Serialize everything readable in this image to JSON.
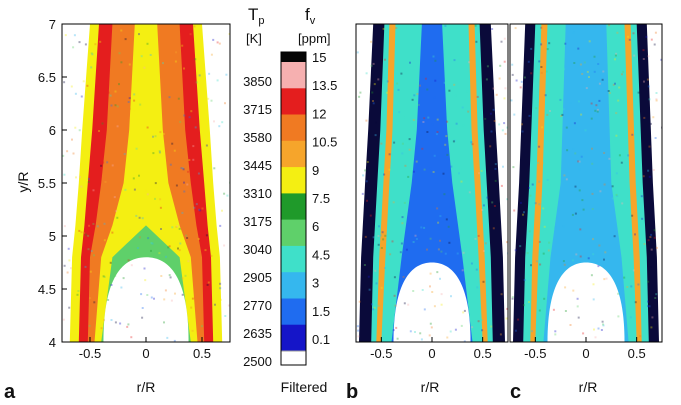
{
  "colors": {
    "levels": [
      "#0a0a3a",
      "#1515c8",
      "#1f6cf0",
      "#35b7ee",
      "#3fe0c9",
      "#5fd06a",
      "#1f9a2a",
      "#f4ef12",
      "#f6a52b",
      "#f07a22",
      "#e41e1e",
      "#f6b0b0",
      "#050505"
    ],
    "filtered": "#ffffff"
  },
  "chart_data": [
    {
      "type": "heatmap",
      "panel": "a",
      "quantity": "Tp",
      "xlabel": "r/R",
      "ylabel": "y/R",
      "xlim": [
        -0.75,
        0.75
      ],
      "ylim": [
        4,
        7
      ],
      "xticks": [
        "-0.5",
        "0",
        "0.5"
      ],
      "yticks": [
        "4",
        "4.5",
        "5",
        "5.5",
        "6",
        "6.5",
        "7"
      ],
      "profile": [
        {
          "y": 4.0,
          "r": [
            -0.68,
            -0.6,
            -0.52,
            -0.46,
            -0.4
          ],
          "levels": [
            7,
            10,
            11,
            10,
            9
          ]
        },
        {
          "y": 4.8,
          "r": [
            -0.66,
            -0.58,
            -0.5,
            -0.4,
            -0.3
          ],
          "levels": [
            7,
            10,
            11,
            10,
            8
          ]
        },
        {
          "y": 5.1,
          "r": [
            -0.63,
            -0.55,
            -0.45,
            -0.3,
            0.0
          ],
          "levels": [
            7,
            10,
            10,
            9,
            5
          ]
        },
        {
          "y": 5.5,
          "r": [
            -0.6,
            -0.52,
            -0.4,
            -0.2,
            0.0
          ],
          "levels": [
            7,
            10,
            9,
            7,
            5
          ]
        },
        {
          "y": 6.0,
          "r": [
            -0.57,
            -0.48,
            -0.35,
            -0.15,
            0.0
          ],
          "levels": [
            7,
            10,
            9,
            8,
            7
          ]
        },
        {
          "y": 7.0,
          "r": [
            -0.5,
            -0.42,
            -0.3,
            -0.1,
            0.0
          ],
          "levels": [
            7,
            9,
            8,
            8,
            8
          ]
        }
      ],
      "filtered_core_tip_y": 4.8
    },
    {
      "type": "legend",
      "header_tp": "T",
      "header_tp_sub": "p",
      "unit_tp": "[K]",
      "header_fv": "f",
      "header_fv_sub": "v",
      "unit_fv": "[ppm]",
      "tp_labels": [
        "3850",
        "3715",
        "3580",
        "3445",
        "3310",
        "3175",
        "3040",
        "2905",
        "2770",
        "2635",
        "2500"
      ],
      "fv_labels": [
        "15",
        "13.5",
        "12",
        "10.5",
        "9",
        "7.5",
        "6",
        "4.5",
        "3",
        "1.5",
        "0.1"
      ],
      "filtered_label": "Filtered"
    },
    {
      "type": "heatmap",
      "panel": "b",
      "quantity": "fv",
      "xlabel": "r/R",
      "xlim": [
        -0.75,
        0.75
      ],
      "ylim": [
        4,
        7
      ],
      "xticks": [
        "-0.5",
        "0",
        "0.5"
      ],
      "profile": [
        {
          "y": 4.0,
          "r": [
            -0.72,
            -0.6,
            -0.55,
            -0.5,
            -0.4
          ],
          "levels": [
            0,
            4,
            7,
            4,
            2
          ]
        },
        {
          "y": 4.8,
          "r": [
            -0.7,
            -0.58,
            -0.52,
            -0.46,
            -0.3
          ],
          "levels": [
            0,
            4,
            7,
            4,
            2
          ]
        },
        {
          "y": 5.5,
          "r": [
            -0.66,
            -0.54,
            -0.48,
            -0.42,
            -0.2
          ],
          "levels": [
            0,
            4,
            8,
            4,
            2
          ]
        },
        {
          "y": 6.0,
          "r": [
            -0.63,
            -0.51,
            -0.45,
            -0.39,
            -0.15
          ],
          "levels": [
            0,
            4,
            8,
            4,
            3
          ]
        },
        {
          "y": 7.0,
          "r": [
            -0.58,
            -0.47,
            -0.42,
            -0.36,
            -0.1
          ],
          "levels": [
            0,
            4,
            7,
            4,
            3
          ]
        }
      ],
      "filtered_core_tip_y": 4.75
    },
    {
      "type": "heatmap",
      "panel": "c",
      "quantity": "fv",
      "xlabel": "r/R",
      "xlim": [
        -0.75,
        0.75
      ],
      "ylim": [
        4,
        7
      ],
      "xticks": [
        "-0.5",
        "0",
        "0.5"
      ],
      "profile": [
        {
          "y": 4.0,
          "r": [
            -0.72,
            -0.62,
            -0.55,
            -0.5,
            -0.42
          ],
          "levels": [
            0,
            3,
            7,
            4,
            2
          ]
        },
        {
          "y": 4.8,
          "r": [
            -0.7,
            -0.6,
            -0.53,
            -0.47,
            -0.35
          ],
          "levels": [
            0,
            4,
            7,
            4,
            2
          ]
        },
        {
          "y": 5.5,
          "r": [
            -0.66,
            -0.56,
            -0.49,
            -0.43,
            -0.25
          ],
          "levels": [
            0,
            4,
            8,
            4,
            3
          ]
        },
        {
          "y": 7.0,
          "r": [
            -0.6,
            -0.5,
            -0.44,
            -0.38,
            -0.2
          ],
          "levels": [
            0,
            4,
            8,
            4,
            3
          ]
        }
      ],
      "filtered_core_tip_y": 4.75
    }
  ]
}
